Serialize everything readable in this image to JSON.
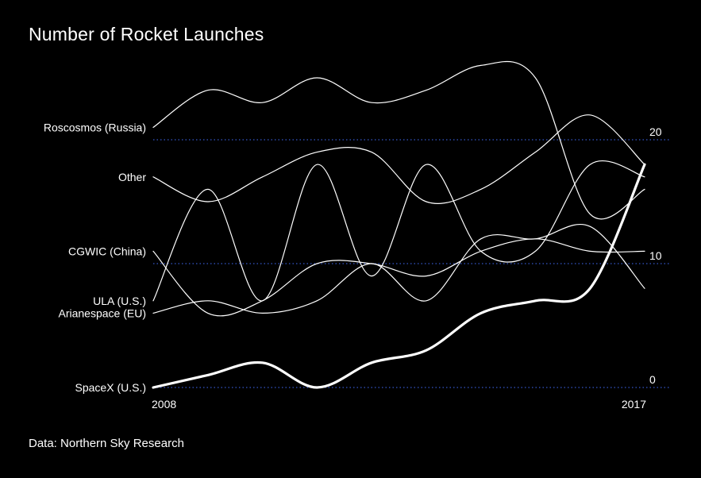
{
  "title": "Number of Rocket Launches",
  "source": "Data: Northern Sky Research",
  "colors": {
    "background": "#000000",
    "line": "#ffffff",
    "gridline": "#3557c9"
  },
  "chart_data": {
    "type": "line",
    "title": "Number of Rocket Launches",
    "x": [
      2008,
      2009,
      2010,
      2011,
      2012,
      2013,
      2014,
      2015,
      2016,
      2017
    ],
    "x_tick_labels": [
      "2008",
      "2017"
    ],
    "y_ticks": [
      0,
      10,
      20
    ],
    "ylim": [
      0,
      26
    ],
    "grid": "dotted lines at 0, 10 and 20",
    "legend": "series labeled directly at left of lines",
    "series": [
      {
        "name": "Roscosmos (Russia)",
        "values": [
          21,
          24,
          23,
          25,
          23,
          24,
          26,
          25,
          14,
          16
        ]
      },
      {
        "name": "Other",
        "values": [
          17,
          15,
          17,
          19,
          19,
          15,
          16,
          19,
          22,
          18
        ]
      },
      {
        "name": "CGWIC (China)",
        "values": [
          11,
          6,
          7,
          10,
          10,
          9,
          11,
          12,
          11,
          11
        ]
      },
      {
        "name": "ULA (U.S.)",
        "values": [
          7,
          16,
          7,
          18,
          9,
          18,
          11,
          11,
          18,
          17
        ]
      },
      {
        "name": "Arianespace (EU)",
        "values": [
          6,
          7,
          6,
          7,
          10,
          7,
          12,
          12,
          13,
          8
        ]
      },
      {
        "name": "SpaceX (U.S.)",
        "values": [
          0,
          1,
          2,
          0,
          2,
          3,
          6,
          7,
          8,
          18
        ]
      }
    ]
  }
}
